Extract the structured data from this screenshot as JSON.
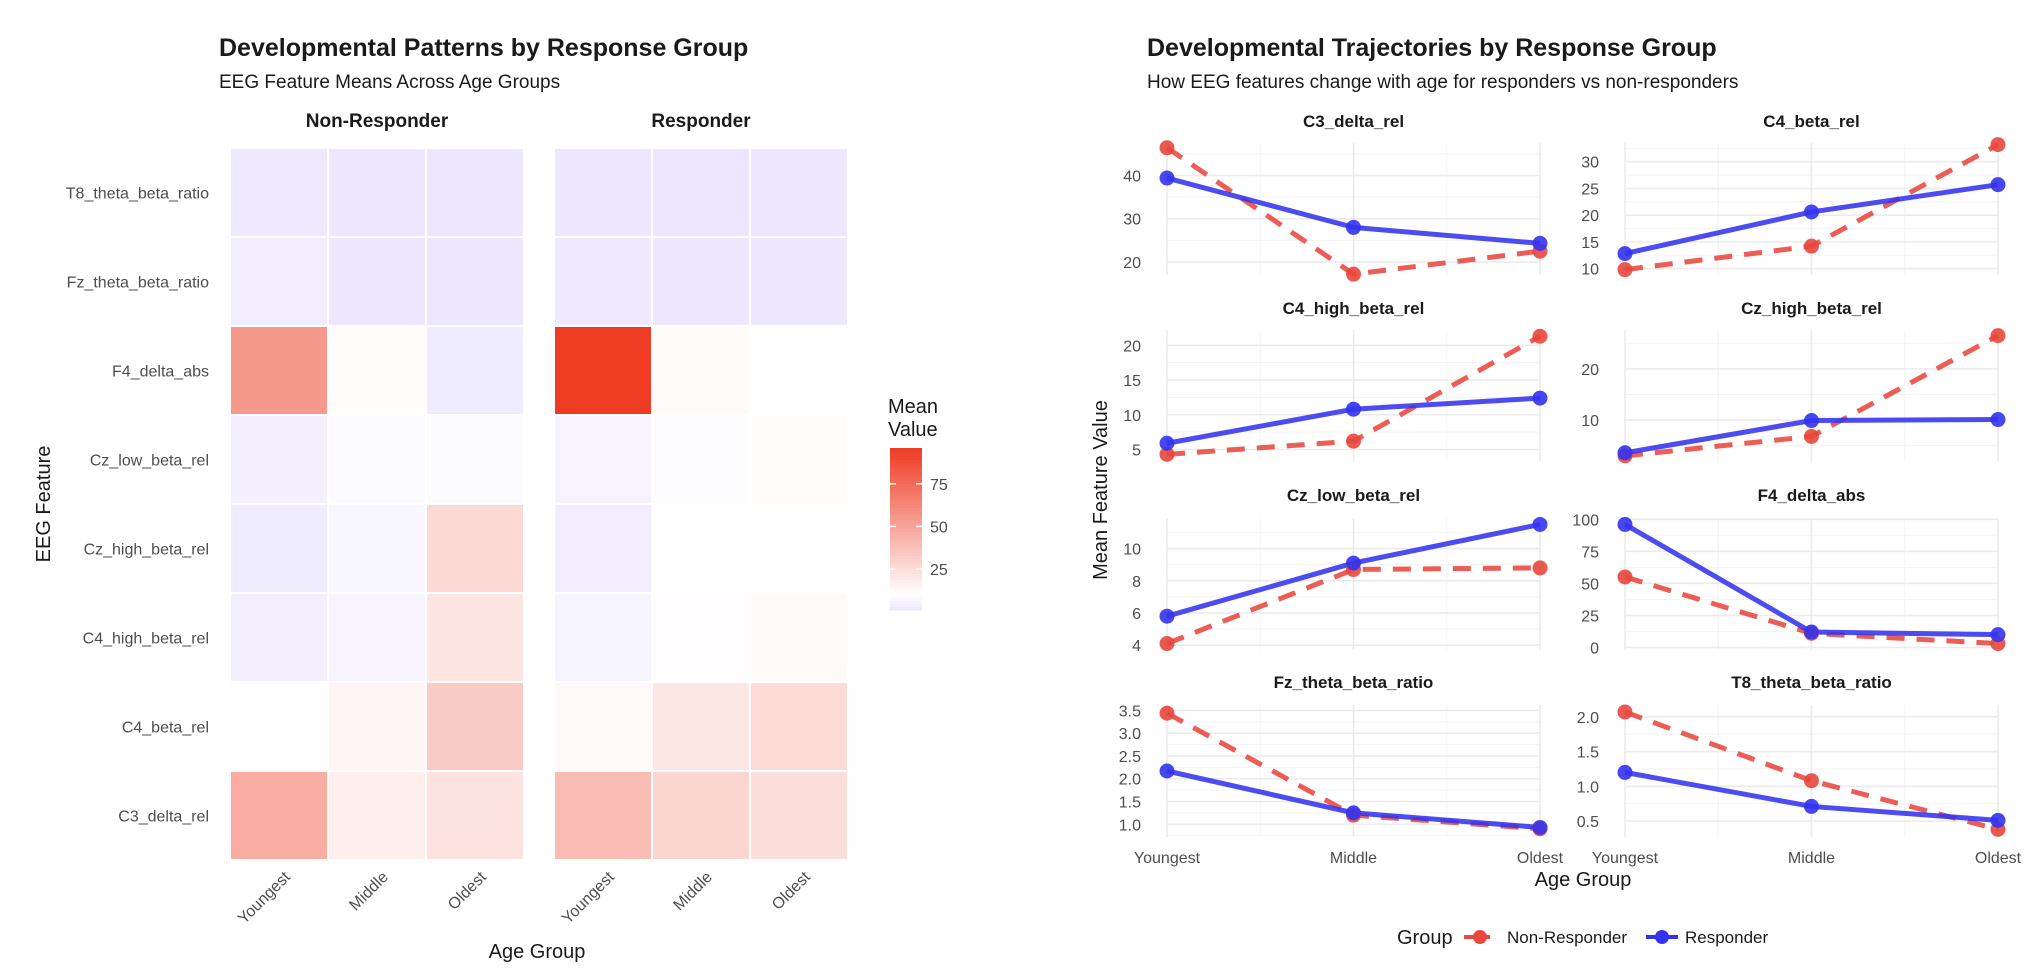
{
  "colors": {
    "non_responder": "#E8473D",
    "responder": "#3333EE",
    "heat_low": "#ECE6FF",
    "heat_mid": "#FFFFFF",
    "heat_high": "#EE3B24",
    "grid": "#EBEBEB"
  },
  "chart_data": [
    {
      "type": "heatmap",
      "title": "Developmental Patterns by Response Group",
      "subtitle": "EEG Feature Means Across Age Groups",
      "xlabel": "Age Group",
      "ylabel": "EEG Feature",
      "facets": [
        "Non-Responder",
        "Responder"
      ],
      "x_categories": [
        "Youngest",
        "Middle",
        "Oldest"
      ],
      "y_categories": [
        "T8_theta_beta_ratio",
        "Fz_theta_beta_ratio",
        "F4_delta_abs",
        "Cz_low_beta_rel",
        "Cz_high_beta_rel",
        "C4_high_beta_rel",
        "C4_beta_rel",
        "C3_delta_rel"
      ],
      "legend_title_lines": [
        "Mean",
        "Value"
      ],
      "legend_ticks": [
        25,
        50,
        75
      ],
      "color_range": [
        1,
        96
      ],
      "values": {
        "Non-Responder": [
          [
            2.07,
            1.08,
            0.38
          ],
          [
            3.44,
            1.2,
            0.9
          ],
          [
            55,
            11,
            3
          ],
          [
            4.1,
            8.7,
            8.8
          ],
          [
            3.0,
            6.8,
            26.5
          ],
          [
            4.3,
            6.2,
            21.3
          ],
          [
            9.8,
            14.2,
            33.2
          ],
          [
            46.4,
            17.2,
            22.5
          ]
        ],
        "Responder": [
          [
            1.2,
            0.71,
            0.51
          ],
          [
            2.17,
            1.25,
            0.93
          ],
          [
            96,
            12,
            10
          ],
          [
            5.8,
            9.1,
            11.5
          ],
          [
            3.6,
            9.9,
            10.1
          ],
          [
            5.9,
            10.8,
            12.4
          ],
          [
            12.8,
            20.6,
            25.7
          ],
          [
            39.4,
            28.0,
            24.3
          ]
        ]
      }
    },
    {
      "type": "line",
      "title": "Developmental Trajectories by Response Group",
      "subtitle": "How EEG features change with age for responders vs non-responders",
      "xlabel": "Age Group",
      "ylabel": "Mean Feature Value",
      "categories": [
        "Youngest",
        "Middle",
        "Oldest"
      ],
      "legend_title": "Group",
      "series_names": [
        "Non-Responder",
        "Responder"
      ],
      "panels": [
        {
          "name": "C3_delta_rel",
          "ylim": [
            17,
            47.5
          ],
          "yticks": [
            20,
            30,
            40
          ],
          "ytick_labels": [
            "20",
            "30",
            "40"
          ],
          "nr": [
            46.4,
            17.2,
            22.5
          ],
          "r": [
            39.4,
            28.0,
            24.3
          ]
        },
        {
          "name": "C4_beta_rel",
          "ylim": [
            8.8,
            33.5
          ],
          "yticks": [
            10,
            15,
            20,
            25,
            30
          ],
          "ytick_labels": [
            "10",
            "15",
            "20",
            "25",
            "30"
          ],
          "nr": [
            9.8,
            14.2,
            33.2
          ],
          "r": [
            12.8,
            20.6,
            25.7
          ]
        },
        {
          "name": "C4_high_beta_rel",
          "ylim": [
            3.2,
            22.2
          ],
          "yticks": [
            5,
            10,
            15,
            20
          ],
          "ytick_labels": [
            "5",
            "10",
            "15",
            "20"
          ],
          "nr": [
            4.3,
            6.2,
            21.3
          ],
          "r": [
            5.9,
            10.8,
            12.4
          ]
        },
        {
          "name": "Cz_high_beta_rel",
          "ylim": [
            1.8,
            27.6
          ],
          "yticks": [
            10,
            20
          ],
          "ytick_labels": [
            "10",
            "20"
          ],
          "nr": [
            3.0,
            6.8,
            26.5
          ],
          "r": [
            3.6,
            9.9,
            10.1
          ]
        },
        {
          "name": "Cz_low_beta_rel",
          "ylim": [
            3.7,
            11.9
          ],
          "yticks": [
            4,
            6,
            8,
            10
          ],
          "ytick_labels": [
            "4",
            "6",
            "8",
            "10"
          ],
          "nr": [
            4.1,
            8.7,
            8.8
          ],
          "r": [
            5.8,
            9.1,
            11.5
          ]
        },
        {
          "name": "F4_delta_abs",
          "ylim": [
            -2,
            101
          ],
          "yticks": [
            0,
            25,
            50,
            75,
            100
          ],
          "ytick_labels": [
            "0",
            "25",
            "50",
            "75",
            "100"
          ],
          "nr": [
            55,
            11,
            3
          ],
          "r": [
            96,
            12,
            10
          ]
        },
        {
          "name": "Fz_theta_beta_ratio",
          "ylim": [
            0.72,
            3.62
          ],
          "yticks": [
            1.0,
            1.5,
            2.0,
            2.5,
            3.0,
            3.5
          ],
          "ytick_labels": [
            "1.0",
            "1.5",
            "2.0",
            "2.5",
            "3.0",
            "3.5"
          ],
          "nr": [
            3.44,
            1.2,
            0.9
          ],
          "r": [
            2.17,
            1.25,
            0.93
          ]
        },
        {
          "name": "T8_theta_beta_ratio",
          "ylim": [
            0.27,
            2.17
          ],
          "yticks": [
            0.5,
            1.0,
            1.5,
            2.0
          ],
          "ytick_labels": [
            "0.5",
            "1.0",
            "1.5",
            "2.0"
          ],
          "nr": [
            2.07,
            1.08,
            0.38
          ],
          "r": [
            1.2,
            0.71,
            0.51
          ]
        }
      ]
    }
  ]
}
